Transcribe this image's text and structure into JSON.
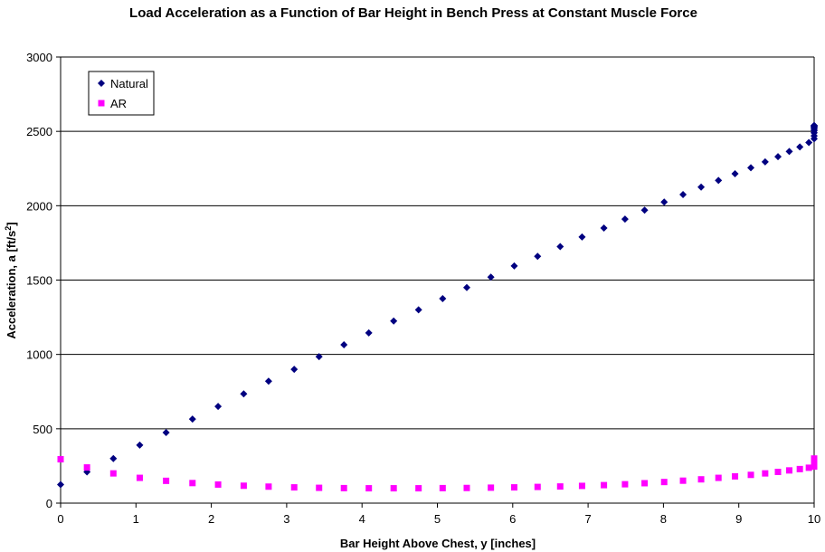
{
  "chart_data": {
    "type": "scatter",
    "title": "Load Acceleration as a Function of Bar Height in Bench Press at Constant Muscle Force",
    "xlabel": "Bar Height Above Chest, y [inches]",
    "ylabel_main": "Acceleration, a [ft/s",
    "ylabel_sup": "2",
    "ylabel_close": "]",
    "xlim": [
      0,
      10
    ],
    "ylim": [
      0,
      3000
    ],
    "xticks": [
      "0",
      "1",
      "2",
      "3",
      "4",
      "5",
      "6",
      "7",
      "8",
      "9",
      "10"
    ],
    "yticks": [
      "0",
      "500",
      "1000",
      "1500",
      "2000",
      "2500",
      "3000"
    ],
    "grid": "horizontal",
    "legend_position": "top-left",
    "series": [
      {
        "name": "Natural",
        "color": "#000080",
        "marker": "diamond",
        "points": [
          [
            0,
            125
          ],
          [
            0.35,
            210
          ],
          [
            0.7,
            300
          ],
          [
            1.05,
            390
          ],
          [
            1.4,
            475
          ],
          [
            1.75,
            565
          ],
          [
            2.09,
            650
          ],
          [
            2.43,
            735
          ],
          [
            2.76,
            820
          ],
          [
            3.1,
            900
          ],
          [
            3.43,
            985
          ],
          [
            3.76,
            1065
          ],
          [
            4.09,
            1145
          ],
          [
            4.42,
            1225
          ],
          [
            4.75,
            1300
          ],
          [
            5.07,
            1375
          ],
          [
            5.39,
            1450
          ],
          [
            5.71,
            1520
          ],
          [
            6.02,
            1595
          ],
          [
            6.33,
            1660
          ],
          [
            6.63,
            1725
          ],
          [
            6.92,
            1790
          ],
          [
            7.21,
            1850
          ],
          [
            7.49,
            1910
          ],
          [
            7.75,
            1970
          ],
          [
            8.01,
            2025
          ],
          [
            8.26,
            2075
          ],
          [
            8.5,
            2125
          ],
          [
            8.73,
            2170
          ],
          [
            8.95,
            2215
          ],
          [
            9.16,
            2255
          ],
          [
            9.35,
            2295
          ],
          [
            9.52,
            2330
          ],
          [
            9.67,
            2365
          ],
          [
            9.81,
            2395
          ],
          [
            9.93,
            2425
          ],
          [
            10.03,
            2450
          ],
          [
            10.12,
            2470
          ],
          [
            10.2,
            2490
          ],
          [
            10.27,
            2505
          ],
          [
            10.32,
            2515
          ],
          [
            10.37,
            2525
          ],
          [
            10.41,
            2530
          ],
          [
            10.44,
            2535
          ],
          [
            10.47,
            2538
          ],
          [
            10.49,
            2540
          ]
        ]
      },
      {
        "name": "AR",
        "color": "#ff00ff",
        "marker": "square",
        "points": [
          [
            0,
            295
          ],
          [
            0.35,
            240
          ],
          [
            0.7,
            200
          ],
          [
            1.05,
            170
          ],
          [
            1.4,
            150
          ],
          [
            1.75,
            135
          ],
          [
            2.09,
            125
          ],
          [
            2.43,
            117
          ],
          [
            2.76,
            111
          ],
          [
            3.1,
            106
          ],
          [
            3.43,
            103
          ],
          [
            3.76,
            101
          ],
          [
            4.09,
            100
          ],
          [
            4.42,
            100
          ],
          [
            4.75,
            100
          ],
          [
            5.07,
            101
          ],
          [
            5.39,
            102
          ],
          [
            5.71,
            104
          ],
          [
            6.02,
            106
          ],
          [
            6.33,
            109
          ],
          [
            6.63,
            112
          ],
          [
            6.92,
            116
          ],
          [
            7.21,
            121
          ],
          [
            7.49,
            127
          ],
          [
            7.75,
            134
          ],
          [
            8.01,
            142
          ],
          [
            8.26,
            151
          ],
          [
            8.5,
            160
          ],
          [
            8.73,
            170
          ],
          [
            8.95,
            180
          ],
          [
            9.16,
            190
          ],
          [
            9.35,
            200
          ],
          [
            9.52,
            210
          ],
          [
            9.67,
            220
          ],
          [
            9.81,
            229
          ],
          [
            9.93,
            238
          ],
          [
            10.03,
            246
          ],
          [
            10.12,
            254
          ],
          [
            10.2,
            262
          ],
          [
            10.27,
            270
          ],
          [
            10.32,
            277
          ],
          [
            10.37,
            284
          ],
          [
            10.41,
            290
          ],
          [
            10.44,
            294
          ],
          [
            10.47,
            297
          ],
          [
            10.49,
            300
          ]
        ]
      }
    ]
  }
}
